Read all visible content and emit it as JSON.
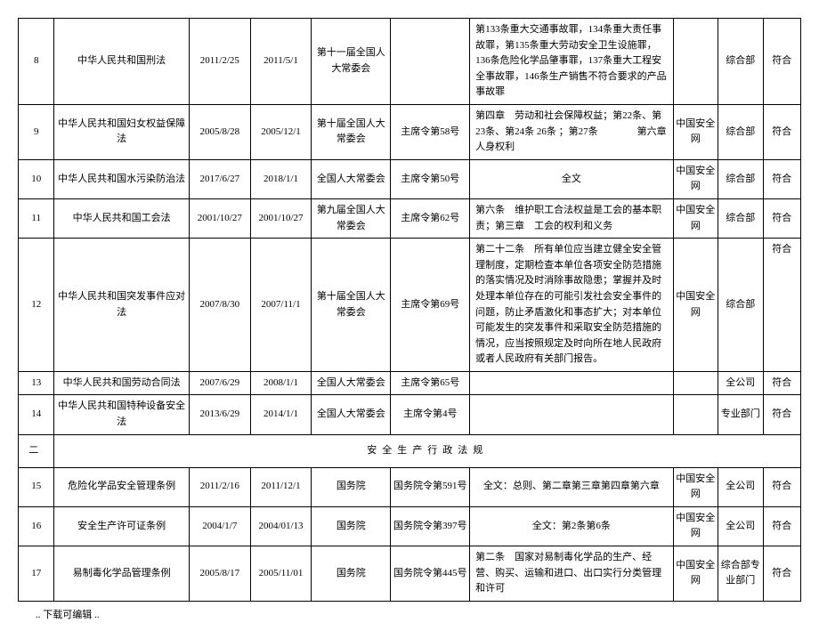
{
  "rows": [
    {
      "idx": "8",
      "name": "中华人民共和国刑法",
      "d1": "2011/2/25",
      "d2": "2011/5/1",
      "org": "第十一届全国人大常委会",
      "order": "",
      "content": "第133条重大交通事故罪，134条重大责任事故罪，第135条重大劳动安全卫生设施罪，136条危险化学品肇事罪，137条重大工程安全事故罪，146条生产销售不符合要求的产品事故罪",
      "src": "",
      "dept": "综合部",
      "stat": "符合"
    },
    {
      "idx": "9",
      "name": "中华人民共和国妇女权益保障法",
      "d1": "2005/8/28",
      "d2": "2005/12/1",
      "org": "第十届全国人大常委会",
      "order": "主席令第58号",
      "content": "第四章　劳动和社会保障权益；第22条、第23条、第24条 26条 ；第27条　　　　第六章　人身权利",
      "src": "中国安全网",
      "dept": "综合部",
      "stat": "符合"
    },
    {
      "idx": "10",
      "name": "中华人民共和国水污染防治法",
      "d1": "2017/6/27",
      "d2": "2018/1/1",
      "org": "全国人大常委会",
      "order": "主席令第50号",
      "content_center": "全文",
      "src": "中国安全网",
      "dept": "综合部",
      "stat": "符合"
    },
    {
      "idx": "11",
      "name": "中华人民共和国工会法",
      "d1": "2001/10/27",
      "d2": "2001/10/27",
      "org": "第九届全国人大常委会",
      "order": "主席令第62号",
      "content": "第六条　维护职工合法权益是工会的基本职责；第三章　工会的权利和义务",
      "src": "中国安全网",
      "dept": "综合部",
      "stat": "符合"
    },
    {
      "idx": "12",
      "name": "中华人民共和国突发事件应对法",
      "d1": "2007/8/30",
      "d2": "2007/11/1",
      "org": "第十届全国人大常委会",
      "order": "主席令第69号",
      "content": "第二十二条　所有单位应当建立健全安全管理制度，定期检查本单位各项安全防范措施的落实情况及时消除事故隐患；掌握并及时处理本单位存在的可能引发社会安全事件的问题，防止矛盾激化和事态扩大；对本单位可能发生的突发事件和采取安全防范措施的情况，应当按照规定及时向所在地人民政府或者人民政府有关部门报告。",
      "src": "中国安全网",
      "dept": "综合部",
      "stat": "符合",
      "stat_top": true
    },
    {
      "idx": "13",
      "name": "中华人民共和国劳动合同法",
      "d1": "2007/6/29",
      "d2": "2008/1/1",
      "org": "全国人大常委会",
      "order": "主席令第65号",
      "content": "",
      "src": "",
      "dept": "全公司",
      "stat": "符合"
    },
    {
      "idx": "14",
      "name": "中华人民共和国特种设备安全法",
      "d1": "2013/6/29",
      "d2": "2014/1/1",
      "org": "全国人大常委会",
      "order": "主席令第4号",
      "content": "",
      "src": "",
      "dept": "专业部门",
      "stat": "符合"
    }
  ],
  "section": {
    "idx": "二",
    "title": "安全生产行政法规"
  },
  "rows2": [
    {
      "idx": "15",
      "name": "危险化学品安全管理条例",
      "d1": "2011/2/16",
      "d2": "2011/12/1",
      "org": "国务院",
      "order": "国务院令第591号",
      "content_center": "全文：总则、第二章第三章第四章第六章",
      "src": "中国安全网",
      "dept": "全公司",
      "stat": "符合"
    },
    {
      "idx": "16",
      "name": "安全生产许可证条例",
      "d1": "2004/1/7",
      "d2": "2004/01/13",
      "org": "国务院",
      "order": "国务院令第397号",
      "content_center": "全文：第2条第6条",
      "src": "中国安全网",
      "dept": "全公司",
      "stat": "符合"
    },
    {
      "idx": "17",
      "name": "易制毒化学品管理条例",
      "d1": "2005/8/17",
      "d2": "2005/11/01",
      "org": "国务院",
      "order": "国务院令第445号",
      "content": "第二条　国家对易制毒化学品的生产、经营、购买、运输和进口、出口实行分类管理和许可",
      "src": "中国安全网",
      "dept": "综合部专业部门",
      "stat": "符合"
    }
  ],
  "footer": ".. 下载可编辑 .."
}
